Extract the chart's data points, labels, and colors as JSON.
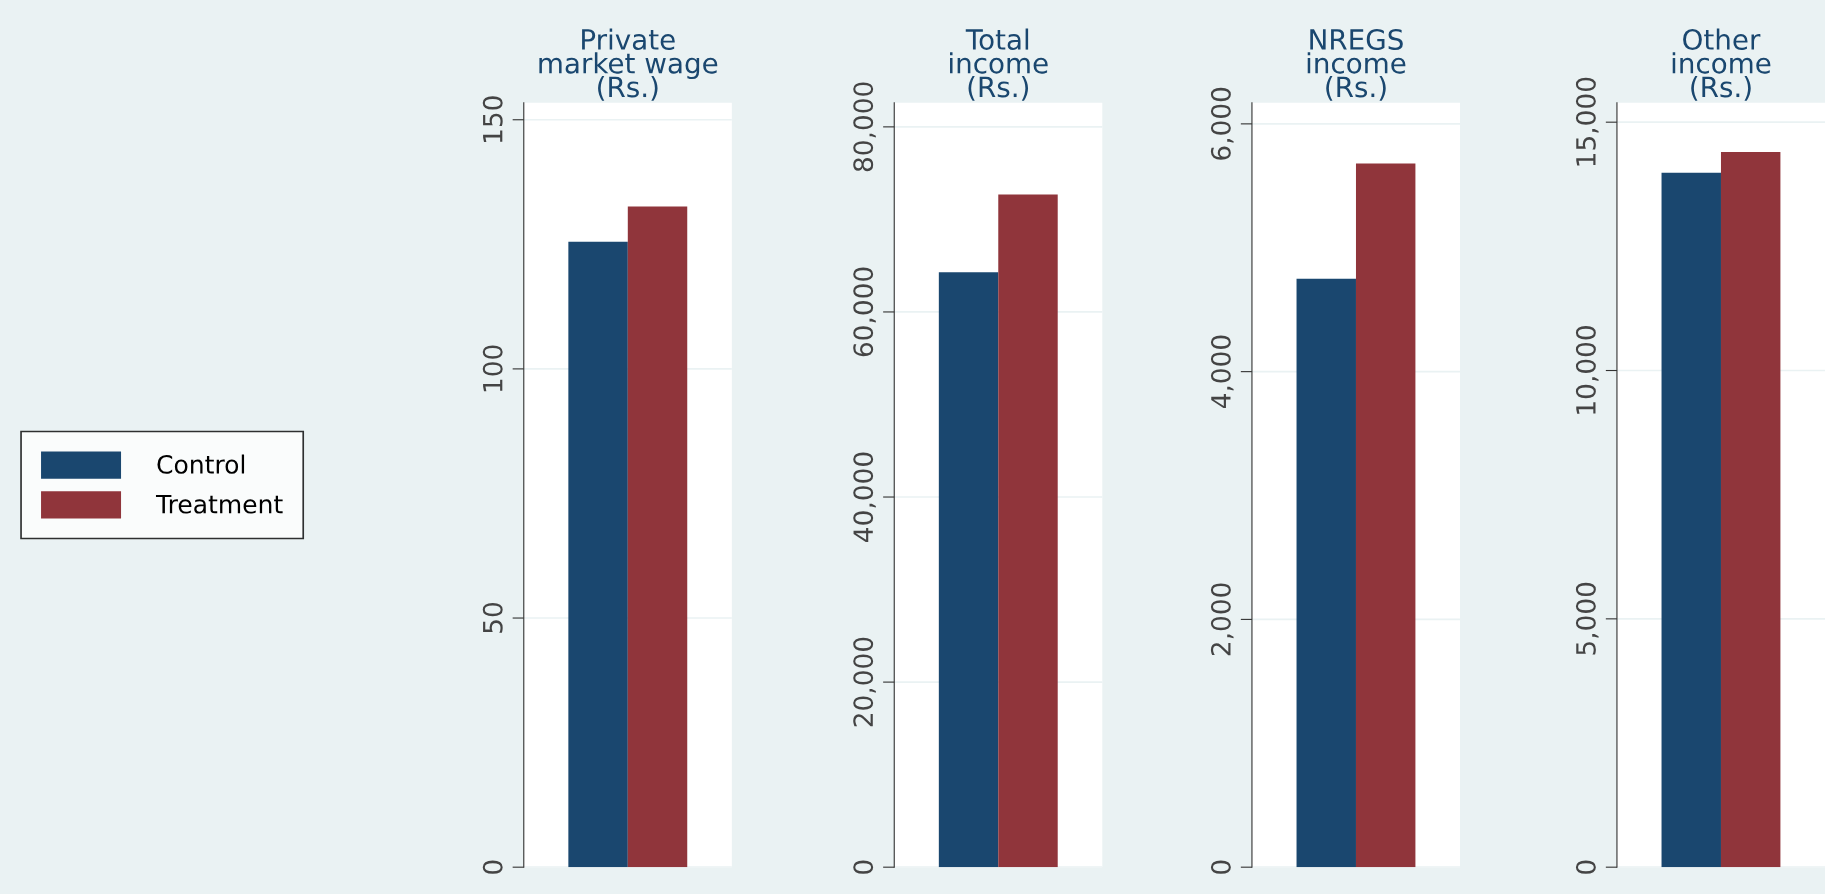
{
  "chart_data": [
    {
      "type": "bar",
      "title": "Private\nmarket wage\n(Rs.)",
      "categories": [
        null
      ],
      "legend": "left",
      "grid": "y",
      "series": [
        {
          "name": "Control",
          "color": "#1a476f",
          "values": [
            125.5
          ]
        },
        {
          "name": "Treatment",
          "color": "#90353b",
          "values": [
            132.6
          ]
        }
      ],
      "ylim": [
        0,
        153.4
      ],
      "yticks": [
        0,
        50,
        100,
        150
      ]
    },
    {
      "type": "bar",
      "title": "Total\nincome\n(Rs.)",
      "categories": [
        null
      ],
      "grid": "y",
      "series": [
        {
          "color": "#1a476f",
          "values": [
            64300
          ]
        },
        {
          "color": "#90353b",
          "values": [
            72700
          ]
        }
      ],
      "ylim": [
        0,
        82600
      ],
      "yticks": [
        {
          "value": 0,
          "label": "0"
        },
        {
          "value": 20000,
          "label": "20,000"
        },
        {
          "value": 40000,
          "label": "40,000"
        },
        {
          "value": 60000,
          "label": "60,000"
        },
        {
          "value": 80000,
          "label": "80,000"
        }
      ]
    },
    {
      "type": "bar",
      "title": "NREGS\nincome\n(Rs.)",
      "categories": [
        null
      ],
      "grid": "y",
      "series": [
        {
          "color": "#1a476f",
          "values": [
            4750
          ]
        },
        {
          "color": "#90353b",
          "values": [
            5680
          ]
        }
      ],
      "ylim": [
        0,
        6170
      ],
      "yticks": [
        {
          "value": 0,
          "label": "0"
        },
        {
          "value": 2000,
          "label": "2,000"
        },
        {
          "value": 4000,
          "label": "4,000"
        },
        {
          "value": 6000,
          "label": "6,000"
        }
      ]
    },
    {
      "type": "bar",
      "title": "Other\nincome\n(Rs.)",
      "categories": [
        null
      ],
      "grid": "y",
      "series": [
        {
          "color": "#1a476f",
          "values": [
            13980
          ]
        },
        {
          "color": "#90353b",
          "values": [
            14400
          ]
        }
      ],
      "ylim": [
        0,
        15390
      ],
      "yticks": [
        {
          "value": 0,
          "label": "0"
        },
        {
          "value": 5000,
          "label": "5,000"
        },
        {
          "value": 10000,
          "label": "10,000"
        },
        {
          "value": 15000,
          "label": "15,000"
        }
      ]
    }
  ]
}
